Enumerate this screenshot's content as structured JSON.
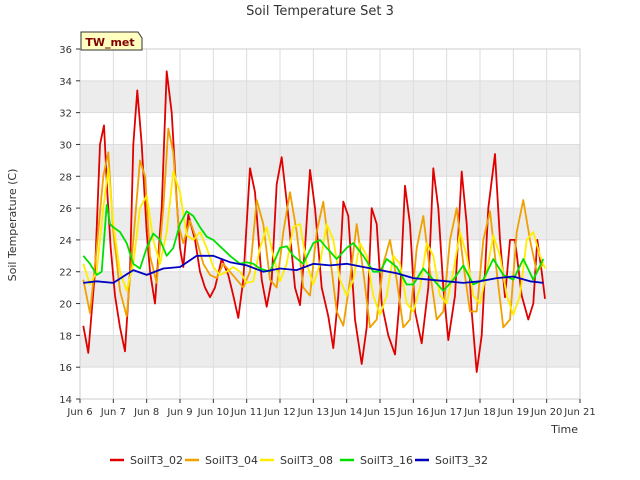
{
  "chart_data": {
    "type": "line",
    "title": "Soil Temperature Set 3",
    "xlabel": "Time",
    "ylabel": "Soil Temperature (C)",
    "annotation": "TW_met",
    "xlim": [
      6,
      21
    ],
    "ylim": [
      14,
      36
    ],
    "xticks": [
      {
        "v": 6,
        "label": "Jun 6"
      },
      {
        "v": 7,
        "label": "Jun 7"
      },
      {
        "v": 8,
        "label": "Jun 8"
      },
      {
        "v": 9,
        "label": "Jun 9"
      },
      {
        "v": 10,
        "label": "Jun 10"
      },
      {
        "v": 11,
        "label": "Jun 11"
      },
      {
        "v": 12,
        "label": "Jun 12"
      },
      {
        "v": 13,
        "label": "Jun 13"
      },
      {
        "v": 14,
        "label": "Jun 14"
      },
      {
        "v": 15,
        "label": "Jun 15"
      },
      {
        "v": 16,
        "label": "Jun 16"
      },
      {
        "v": 17,
        "label": "Jun 17"
      },
      {
        "v": 18,
        "label": "Jun 18"
      },
      {
        "v": 19,
        "label": "Jun 19"
      },
      {
        "v": 20,
        "label": "Jun 20"
      },
      {
        "v": 21,
        "label": "Jun 21"
      }
    ],
    "yticks": [
      14,
      16,
      18,
      20,
      22,
      24,
      26,
      28,
      30,
      32,
      34,
      36
    ],
    "grid": true,
    "legend_position": "bottom",
    "series": [
      {
        "name": "SoilT3_02",
        "color": "#e00000",
        "x": [
          6.1,
          6.25,
          6.45,
          6.6,
          6.72,
          6.82,
          6.92,
          7.05,
          7.2,
          7.35,
          7.5,
          7.6,
          7.72,
          7.85,
          8.0,
          8.1,
          8.25,
          8.45,
          8.6,
          8.75,
          8.9,
          9.0,
          9.1,
          9.25,
          9.45,
          9.6,
          9.75,
          9.9,
          10.05,
          10.25,
          10.45,
          10.6,
          10.75,
          10.9,
          11.1,
          11.25,
          11.45,
          11.6,
          11.75,
          11.9,
          12.05,
          12.25,
          12.45,
          12.6,
          12.75,
          12.9,
          13.05,
          13.25,
          13.45,
          13.6,
          13.75,
          13.9,
          14.05,
          14.25,
          14.45,
          14.6,
          14.75,
          14.9,
          15.05,
          15.25,
          15.45,
          15.6,
          15.75,
          15.9,
          16.05,
          16.25,
          16.45,
          16.6,
          16.75,
          16.9,
          17.05,
          17.25,
          17.45,
          17.6,
          17.75,
          17.9,
          18.05,
          18.25,
          18.45,
          18.6,
          18.75,
          18.9,
          19.05,
          19.25,
          19.45,
          19.6,
          19.72,
          19.85,
          19.95
        ],
        "values": [
          18.6,
          16.9,
          22.0,
          30.0,
          31.2,
          27.0,
          23.5,
          20.5,
          18.5,
          17.0,
          22.0,
          30.0,
          33.4,
          30.0,
          24.5,
          22.0,
          20.0,
          26.0,
          34.6,
          32.0,
          26.5,
          23.5,
          22.3,
          25.6,
          24.0,
          22.0,
          21.0,
          20.4,
          21.0,
          22.8,
          21.8,
          20.5,
          19.1,
          21.5,
          28.5,
          27.0,
          21.5,
          19.8,
          21.5,
          27.5,
          29.2,
          25.5,
          21.0,
          19.9,
          23.5,
          28.4,
          26.0,
          21.0,
          19.2,
          17.2,
          20.5,
          26.4,
          25.5,
          19.0,
          16.2,
          18.5,
          26.0,
          25.0,
          20.0,
          18.0,
          16.8,
          20.5,
          27.4,
          25.0,
          19.5,
          17.5,
          21.0,
          28.5,
          26.0,
          21.0,
          17.7,
          20.5,
          28.3,
          25.0,
          19.5,
          15.7,
          18.0,
          26.0,
          29.4,
          24.0,
          20.4,
          24.0,
          24.0,
          20.5,
          19.0,
          20.0,
          24.0,
          22.0,
          20.3
        ]
      },
      {
        "name": "SoilT3_04",
        "color": "#f0a000",
        "x": [
          6.1,
          6.3,
          6.5,
          6.7,
          6.85,
          7.0,
          7.2,
          7.4,
          7.6,
          7.8,
          7.95,
          8.1,
          8.3,
          8.5,
          8.65,
          8.8,
          8.95,
          9.1,
          9.3,
          9.5,
          9.7,
          9.9,
          10.1,
          10.3,
          10.5,
          10.7,
          10.9,
          11.1,
          11.3,
          11.5,
          11.7,
          11.9,
          12.1,
          12.3,
          12.5,
          12.7,
          12.9,
          13.1,
          13.3,
          13.5,
          13.7,
          13.9,
          14.1,
          14.3,
          14.5,
          14.7,
          14.9,
          15.1,
          15.3,
          15.5,
          15.7,
          15.9,
          16.1,
          16.3,
          16.5,
          16.7,
          16.9,
          17.1,
          17.3,
          17.5,
          17.7,
          17.9,
          18.1,
          18.3,
          18.5,
          18.7,
          18.9,
          19.1,
          19.3,
          19.5,
          19.7,
          19.9
        ],
        "values": [
          21.5,
          19.4,
          23.5,
          28.0,
          29.5,
          24.5,
          20.8,
          19.2,
          24.0,
          29.0,
          28.0,
          23.0,
          21.3,
          26.0,
          31.0,
          29.5,
          25.0,
          23.8,
          25.2,
          24.0,
          22.5,
          21.8,
          21.6,
          22.5,
          22.0,
          21.5,
          21.0,
          22.0,
          26.5,
          25.0,
          21.5,
          21.0,
          24.5,
          27.0,
          24.5,
          21.0,
          20.5,
          24.5,
          26.4,
          23.0,
          19.5,
          18.6,
          21.5,
          25.0,
          22.0,
          18.5,
          19.0,
          22.5,
          24.0,
          21.5,
          18.5,
          19.0,
          23.5,
          25.5,
          22.0,
          19.0,
          19.5,
          24.0,
          26.0,
          22.5,
          19.5,
          19.5,
          24.0,
          25.8,
          22.0,
          18.5,
          19.0,
          24.5,
          26.5,
          24.0,
          22.0,
          22.5
        ]
      },
      {
        "name": "SoilT3_08",
        "color": "#ffee00",
        "x": [
          6.1,
          6.3,
          6.5,
          6.7,
          6.85,
          7.0,
          7.2,
          7.4,
          7.6,
          7.8,
          8.0,
          8.2,
          8.4,
          8.6,
          8.8,
          9.0,
          9.2,
          9.4,
          9.6,
          9.8,
          10.0,
          10.2,
          10.4,
          10.6,
          10.8,
          11.0,
          11.2,
          11.4,
          11.6,
          11.8,
          12.0,
          12.2,
          12.4,
          12.6,
          12.8,
          13.0,
          13.2,
          13.4,
          13.6,
          13.8,
          14.0,
          14.2,
          14.4,
          14.6,
          14.8,
          15.0,
          15.2,
          15.4,
          15.6,
          15.8,
          16.0,
          16.2,
          16.4,
          16.6,
          16.8,
          17.0,
          17.2,
          17.4,
          17.6,
          17.8,
          18.0,
          18.2,
          18.4,
          18.6,
          18.8,
          19.0,
          19.2,
          19.4,
          19.6,
          19.8,
          19.95
        ],
        "values": [
          22.5,
          21.2,
          22.0,
          26.0,
          28.5,
          25.0,
          22.0,
          20.8,
          22.5,
          26.0,
          26.8,
          24.0,
          22.5,
          24.5,
          28.3,
          27.0,
          24.3,
          24.0,
          24.5,
          23.5,
          22.3,
          21.8,
          22.0,
          22.3,
          22.0,
          21.3,
          21.4,
          23.5,
          24.8,
          23.0,
          21.4,
          22.5,
          24.8,
          25.0,
          22.5,
          21.2,
          22.5,
          25.0,
          24.0,
          21.5,
          20.5,
          21.5,
          23.8,
          23.0,
          20.5,
          19.3,
          20.5,
          23.0,
          22.5,
          20.0,
          19.5,
          21.0,
          23.8,
          23.0,
          20.5,
          20.0,
          22.0,
          24.5,
          23.0,
          20.5,
          20.0,
          22.0,
          24.3,
          23.0,
          20.5,
          19.3,
          20.5,
          24.0,
          24.5,
          23.0,
          22.2
        ]
      },
      {
        "name": "SoilT3_16",
        "color": "#00e000",
        "x": [
          6.1,
          6.3,
          6.5,
          6.65,
          6.8,
          6.9,
          7.0,
          7.2,
          7.4,
          7.6,
          7.8,
          8.0,
          8.2,
          8.4,
          8.6,
          8.8,
          9.0,
          9.2,
          9.4,
          9.6,
          9.8,
          10.0,
          10.2,
          10.5,
          10.8,
          11.0,
          11.2,
          11.4,
          11.7,
          12.0,
          12.2,
          12.4,
          12.7,
          13.0,
          13.2,
          13.4,
          13.7,
          14.0,
          14.2,
          14.5,
          14.8,
          15.0,
          15.2,
          15.5,
          15.8,
          16.0,
          16.3,
          16.6,
          16.9,
          17.2,
          17.5,
          17.8,
          18.1,
          18.4,
          18.7,
          19.0,
          19.3,
          19.6,
          19.9
        ],
        "values": [
          23.0,
          22.5,
          21.8,
          22.0,
          26.2,
          25.0,
          24.8,
          24.5,
          23.8,
          22.5,
          22.2,
          23.5,
          24.4,
          24.0,
          23.0,
          23.5,
          25.0,
          25.8,
          25.5,
          24.8,
          24.2,
          24.0,
          23.6,
          23.0,
          22.5,
          22.6,
          22.5,
          22.2,
          22.0,
          23.5,
          23.6,
          23.0,
          22.5,
          23.8,
          24.0,
          23.5,
          22.8,
          23.5,
          23.8,
          23.0,
          22.0,
          22.0,
          22.8,
          22.3,
          21.2,
          21.2,
          22.2,
          21.5,
          20.8,
          21.5,
          22.4,
          21.2,
          21.5,
          22.8,
          21.8,
          21.5,
          22.8,
          21.5,
          22.8
        ]
      },
      {
        "name": "SoilT3_32",
        "color": "#0000c0",
        "x": [
          6.1,
          6.5,
          7.0,
          7.3,
          7.6,
          8.0,
          8.5,
          9.0,
          9.5,
          10.0,
          10.5,
          11.0,
          11.5,
          12.0,
          12.5,
          13.0,
          13.5,
          14.0,
          14.5,
          15.0,
          15.5,
          16.0,
          16.5,
          17.0,
          17.5,
          18.0,
          18.5,
          19.0,
          19.5,
          19.9
        ],
        "values": [
          21.3,
          21.4,
          21.3,
          21.7,
          22.1,
          21.8,
          22.2,
          22.3,
          23.0,
          23.0,
          22.6,
          22.4,
          22.0,
          22.2,
          22.1,
          22.5,
          22.4,
          22.5,
          22.3,
          22.1,
          21.9,
          21.6,
          21.5,
          21.4,
          21.3,
          21.4,
          21.6,
          21.7,
          21.4,
          21.3
        ]
      }
    ]
  }
}
